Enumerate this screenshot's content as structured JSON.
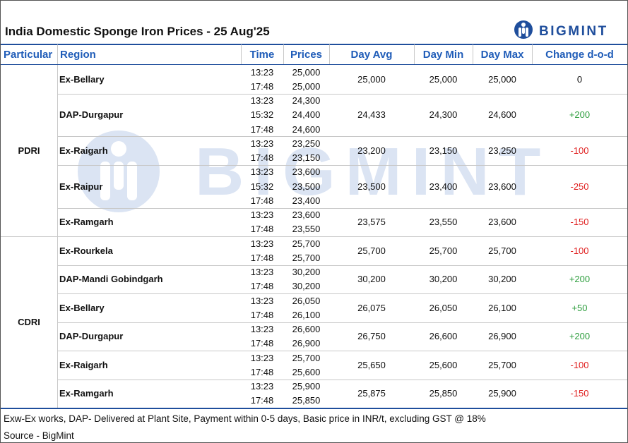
{
  "header": {
    "title": "India Domestic Sponge Iron Prices - 25 Aug'25",
    "logo": "BIGMINT"
  },
  "table": {
    "columns": [
      "Particular",
      "Region",
      "Time",
      "Prices",
      "Day Avg",
      "Day Min",
      "Day Max",
      "Change d-o-d"
    ],
    "groups": [
      {
        "particular": "PDRI",
        "rows": [
          {
            "region": "Ex-Bellary",
            "times": [
              "13:23",
              "17:48"
            ],
            "prices": [
              "25,000",
              "25,000"
            ],
            "day_avg": "25,000",
            "day_min": "25,000",
            "day_max": "25,000",
            "change": "0"
          },
          {
            "region": "DAP-Durgapur",
            "times": [
              "13:23",
              "15:32",
              "17:48"
            ],
            "prices": [
              "24,300",
              "24,400",
              "24,600"
            ],
            "day_avg": "24,433",
            "day_min": "24,300",
            "day_max": "24,600",
            "change": "+200"
          },
          {
            "region": "Ex-Raigarh",
            "times": [
              "13:23",
              "17:48"
            ],
            "prices": [
              "23,250",
              "23,150"
            ],
            "day_avg": "23,200",
            "day_min": "23,150",
            "day_max": "23,250",
            "change": "-100"
          },
          {
            "region": "Ex-Raipur",
            "times": [
              "13:23",
              "15:32",
              "17:48"
            ],
            "prices": [
              "23,600",
              "23,500",
              "23,400"
            ],
            "day_avg": "23,500",
            "day_min": "23,400",
            "day_max": "23,600",
            "change": "-250"
          },
          {
            "region": "Ex-Ramgarh",
            "times": [
              "13:23",
              "17:48"
            ],
            "prices": [
              "23,600",
              "23,550"
            ],
            "day_avg": "23,575",
            "day_min": "23,550",
            "day_max": "23,600",
            "change": "-150"
          }
        ]
      },
      {
        "particular": "CDRI",
        "rows": [
          {
            "region": "Ex-Rourkela",
            "times": [
              "13:23",
              "17:48"
            ],
            "prices": [
              "25,700",
              "25,700"
            ],
            "day_avg": "25,700",
            "day_min": "25,700",
            "day_max": "25,700",
            "change": "-100"
          },
          {
            "region": "DAP-Mandi Gobindgarh",
            "times": [
              "13:23",
              "17:48"
            ],
            "prices": [
              "30,200",
              "30,200"
            ],
            "day_avg": "30,200",
            "day_min": "30,200",
            "day_max": "30,200",
            "change": "+200"
          },
          {
            "region": "Ex-Bellary",
            "times": [
              "13:23",
              "17:48"
            ],
            "prices": [
              "26,050",
              "26,100"
            ],
            "day_avg": "26,075",
            "day_min": "26,050",
            "day_max": "26,100",
            "change": "+50"
          },
          {
            "region": "DAP-Durgapur",
            "times": [
              "13:23",
              "17:48"
            ],
            "prices": [
              "26,600",
              "26,900"
            ],
            "day_avg": "26,750",
            "day_min": "26,600",
            "day_max": "26,900",
            "change": "+200"
          },
          {
            "region": "Ex-Raigarh",
            "times": [
              "13:23",
              "17:48"
            ],
            "prices": [
              "25,700",
              "25,600"
            ],
            "day_avg": "25,650",
            "day_min": "25,600",
            "day_max": "25,700",
            "change": "-100"
          },
          {
            "region": "Ex-Ramgarh",
            "times": [
              "13:23",
              "17:48"
            ],
            "prices": [
              "25,900",
              "25,850"
            ],
            "day_avg": "25,875",
            "day_min": "25,850",
            "day_max": "25,900",
            "change": "-150"
          }
        ]
      }
    ]
  },
  "footer": {
    "notes": [
      "Exw-Ex works, DAP- Delivered at Plant Site, Payment within 0-5 days, Basic price in INR/t, excluding GST @ 18%",
      "Source - BigMint"
    ]
  }
}
